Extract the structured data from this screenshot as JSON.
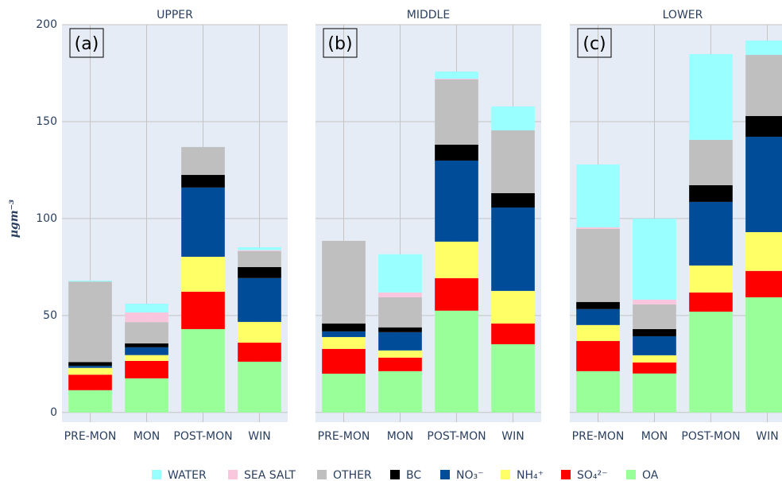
{
  "chart_data": [
    {
      "type": "bar",
      "stacked": true,
      "title": "UPPER",
      "annotation": "(a)",
      "y_label": "μgm⁻³",
      "categories": [
        "PRE-MON",
        "MON",
        "POST-MON",
        "WIN"
      ],
      "ylim": [
        -5,
        200
      ],
      "yticks": [
        0,
        50,
        100,
        150,
        200
      ],
      "grid": true,
      "series": [
        {
          "name": "OA",
          "color": "#99ff99",
          "values": [
            11.5,
            17.6,
            43,
            26.2
          ]
        },
        {
          "name": "SO₄²⁻",
          "color": "#ff0000",
          "values": [
            8,
            9,
            19.3,
            9.8
          ]
        },
        {
          "name": "NH₄⁺",
          "color": "#ffff66",
          "values": [
            3.5,
            3,
            18,
            10.7
          ]
        },
        {
          "name": "NO₃⁻",
          "color": "#004c99",
          "values": [
            1,
            4,
            35.7,
            22.6
          ]
        },
        {
          "name": "BC",
          "color": "#000000",
          "values": [
            2,
            2,
            6.5,
            5.7
          ]
        },
        {
          "name": "OTHER",
          "color": "#bfbfbf",
          "values": [
            41.5,
            11,
            14.4,
            8.2
          ]
        },
        {
          "name": "SEA SALT",
          "color": "#f9c6dd",
          "values": [
            0,
            5,
            0,
            0.5
          ]
        },
        {
          "name": "WATER",
          "color": "#99ffff",
          "values": [
            0.5,
            4.5,
            0,
            1.5
          ]
        }
      ]
    },
    {
      "type": "bar",
      "stacked": true,
      "title": "MIDDLE",
      "annotation": "(b)",
      "categories": [
        "PRE-MON",
        "MON",
        "POST-MON",
        "WIN"
      ],
      "ylim": [
        -5,
        200
      ],
      "yticks": [
        0,
        50,
        100,
        150,
        200
      ],
      "grid": true,
      "series": [
        {
          "name": "OA",
          "color": "#99ff99",
          "values": [
            20,
            21.3,
            52.5,
            35.2
          ]
        },
        {
          "name": "SO₄²⁻",
          "color": "#ff0000",
          "values": [
            12.8,
            7,
            16.8,
            10.7
          ]
        },
        {
          "name": "NH₄⁺",
          "color": "#ffff66",
          "values": [
            6.1,
            3.7,
            18.8,
            16.8
          ]
        },
        {
          "name": "NO₃⁻",
          "color": "#004c99",
          "values": [
            2.9,
            9.4,
            41.8,
            43
          ]
        },
        {
          "name": "BC",
          "color": "#000000",
          "values": [
            4.1,
            2.5,
            8.2,
            7.4
          ]
        },
        {
          "name": "OTHER",
          "color": "#bfbfbf",
          "values": [
            42.6,
            15.5,
            33.6,
            32.4
          ]
        },
        {
          "name": "SEA SALT",
          "color": "#f9c6dd",
          "values": [
            0,
            2.5,
            0.4,
            0
          ]
        },
        {
          "name": "WATER",
          "color": "#99ffff",
          "values": [
            0,
            19.7,
            3.7,
            12.3
          ]
        }
      ]
    },
    {
      "type": "bar",
      "stacked": true,
      "title": "LOWER",
      "annotation": "(c)",
      "categories": [
        "PRE-MON",
        "MON",
        "POST-MON",
        "WIN"
      ],
      "ylim": [
        -5,
        200
      ],
      "yticks": [
        0,
        50,
        100,
        150,
        200
      ],
      "grid": true,
      "series": [
        {
          "name": "OA",
          "color": "#99ff99",
          "values": [
            21.3,
            20.1,
            52,
            59.4
          ]
        },
        {
          "name": "SO₄²⁻",
          "color": "#ff0000",
          "values": [
            15.6,
            5.7,
            9.9,
            13.6
          ]
        },
        {
          "name": "NH₄⁺",
          "color": "#ffff66",
          "values": [
            8.2,
            3.7,
            13.9,
            20
          ]
        },
        {
          "name": "NO₃⁻",
          "color": "#004c99",
          "values": [
            8.2,
            9.8,
            32.8,
            49.2
          ]
        },
        {
          "name": "BC",
          "color": "#000000",
          "values": [
            3.7,
            3.7,
            8.6,
            10.7
          ]
        },
        {
          "name": "OTHER",
          "color": "#bfbfbf",
          "values": [
            37.7,
            12.7,
            23.4,
            31.5
          ]
        },
        {
          "name": "SEA SALT",
          "color": "#f9c6dd",
          "values": [
            0.8,
            2.5,
            0,
            0
          ]
        },
        {
          "name": "WATER",
          "color": "#99ffff",
          "values": [
            32.4,
            41.8,
            44.2,
            7.4
          ]
        }
      ]
    }
  ]
}
